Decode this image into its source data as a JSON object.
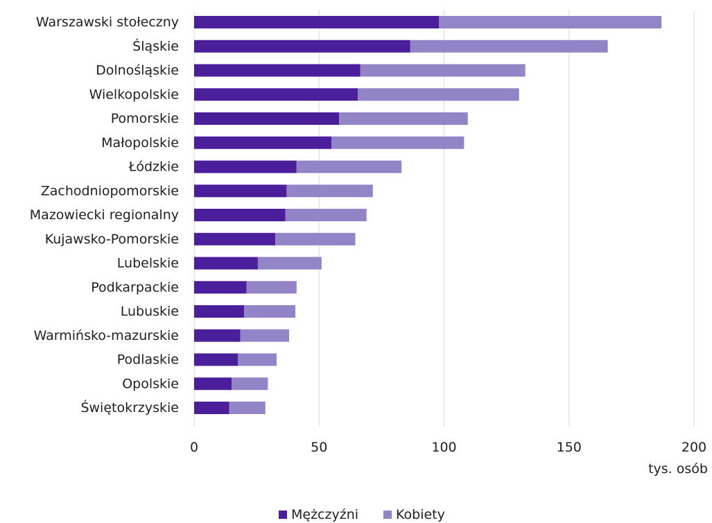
{
  "chart_data": {
    "type": "bar",
    "orientation": "horizontal",
    "stacked": true,
    "categories": [
      "Warszawski stołeczny",
      "Śląskie",
      "Dolnośląskie",
      "Wielkopolskie",
      "Pomorskie",
      "Małopolskie",
      "Łódzkie",
      "Zachodniopomorskie",
      "Mazowiecki regionalny",
      "Kujawsko-Pomorskie",
      "Lubelskie",
      "Podkarpackie",
      "Lubuskie",
      "Warmińsko-mazurskie",
      "Podlaskie",
      "Opolskie",
      "Świętokrzyskie"
    ],
    "series": [
      {
        "name": "Mężczyźni",
        "color": "#4b1e9c",
        "values": [
          98,
          86.5,
          66.5,
          65.5,
          58,
          55,
          41,
          37,
          36.5,
          32.5,
          25.5,
          21,
          20,
          18.5,
          17.5,
          15,
          14
        ]
      },
      {
        "name": "Kobiety",
        "color": "#9284c6",
        "values": [
          89,
          79,
          66,
          64.5,
          51.5,
          53,
          42,
          34.5,
          32.5,
          32,
          25.5,
          20,
          20.5,
          19.5,
          15.5,
          14.5,
          14.5
        ]
      }
    ],
    "xlim": [
      0,
      200
    ],
    "xticks": [
      "0",
      "50",
      "100",
      "150",
      "200"
    ],
    "xtick_values": [
      0,
      50,
      100,
      150,
      200
    ],
    "xlabel": "tys. osób",
    "ylabel": "",
    "title": "",
    "grid": "vertical",
    "legend_position": "bottom-center"
  }
}
